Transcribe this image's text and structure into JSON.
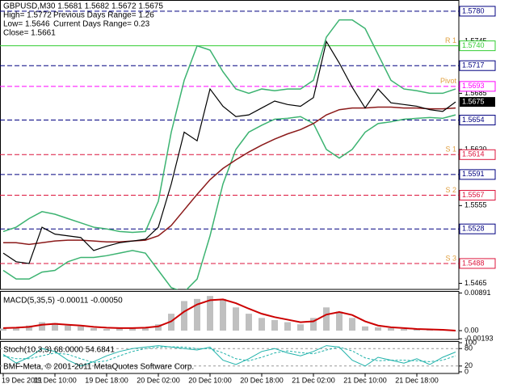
{
  "chart_data": [
    {
      "type": "line",
      "title": "GBPUSD,M30  1.5681 1.5682 1.5672 1.5675",
      "annotations": [
        "High= 1.5772",
        "Previous Days Range= 1.26",
        "Low= 1.5646",
        "Current Days Range= 0.23",
        "Close= 1.5661"
      ],
      "categories": [
        "19 Dec 2011",
        null,
        null,
        null,
        "19 Dec 10:00",
        null,
        null,
        null,
        "19 Dec 18:00",
        null,
        null,
        null,
        "20 Dec 02:00",
        null,
        null,
        null,
        "20 Dec 10:00",
        null,
        null,
        null,
        "20 Dec 18:00",
        null,
        null,
        null,
        "21 Dec 02:00",
        null,
        null,
        null,
        "21 Dec 10:00",
        null,
        null,
        null,
        "21 Dec 18:00",
        null,
        null,
        null
      ],
      "series": [
        {
          "color": "#3cb371",
          "values": [
            1.5525,
            1.553,
            1.554,
            1.5548,
            1.5545,
            1.554,
            1.5535,
            1.553,
            1.5528,
            1.5525,
            1.5524,
            1.5525,
            1.556,
            1.564,
            1.57,
            1.574,
            1.5735,
            1.571,
            1.569,
            1.5685,
            1.569,
            1.5688,
            1.569,
            1.569,
            1.57,
            1.575,
            1.577,
            1.577,
            1.576,
            1.573,
            1.57,
            1.569,
            1.5688,
            1.5685,
            1.5685,
            1.569
          ]
        },
        {
          "color": "#3cb371",
          "values": [
            1.548,
            1.547,
            1.547,
            1.5478,
            1.548,
            1.549,
            1.5495,
            1.5495,
            1.5497,
            1.55,
            1.5503,
            1.55,
            1.548,
            1.546,
            1.5455,
            1.547,
            1.552,
            1.558,
            1.562,
            1.564,
            1.5648,
            1.5655,
            1.5656,
            1.5658,
            1.565,
            1.562,
            1.561,
            1.562,
            1.564,
            1.565,
            1.5652,
            1.5655,
            1.5656,
            1.5657,
            1.5656,
            1.566
          ]
        },
        {
          "color": "#8b1a1a",
          "values": [
            1.5512,
            1.5512,
            1.551,
            1.5512,
            1.5514,
            1.5515,
            1.5515,
            1.5514,
            1.5513,
            1.5513,
            1.5514,
            1.5515,
            1.552,
            1.5532,
            1.555,
            1.5568,
            1.5585,
            1.5598,
            1.5608,
            1.5617,
            1.5625,
            1.5632,
            1.5638,
            1.5643,
            1.565,
            1.566,
            1.5666,
            1.5668,
            1.5668,
            1.5669,
            1.5669,
            1.5668,
            1.5668,
            1.5667,
            1.5667,
            1.5668
          ]
        },
        {
          "color": "#000000",
          "values": [
            1.55,
            1.549,
            1.5488,
            1.553,
            1.5522,
            1.552,
            1.5518,
            1.5503,
            1.5508,
            1.5512,
            1.5514,
            1.5516,
            1.553,
            1.558,
            1.564,
            1.563,
            1.569,
            1.567,
            1.5658,
            1.566,
            1.5668,
            1.5676,
            1.5672,
            1.567,
            1.568,
            1.5745,
            1.572,
            1.5692,
            1.5668,
            1.569,
            1.5674,
            1.5672,
            1.567,
            1.5666,
            1.5664,
            1.5675
          ]
        }
      ],
      "ylim": [
        1.5458,
        1.5793
      ],
      "yticks": [
        1.5745,
        1.5685,
        {
          "value": 1.562,
          "label": "1.5620"
        },
        1.5555,
        1.5465
      ],
      "levels": [
        {
          "value": 1.578,
          "label": "1.5780",
          "color": "#000080",
          "dash": true
        },
        {
          "value": 1.574,
          "label": "1.5740",
          "name": "R 1",
          "color": "#32cd32",
          "dash": false
        },
        {
          "value": 1.5717,
          "label": "1.5717",
          "color": "#000080",
          "dash": true
        },
        {
          "value": 1.5693,
          "label": "1.5693",
          "name": "Pivot",
          "color": "#ff00ff",
          "dash": true
        },
        {
          "value": 1.5654,
          "label": "1.5654",
          "color": "#000080",
          "dash": true
        },
        {
          "value": 1.5614,
          "label": "1.5614",
          "name": "S 1",
          "color": "#dc143c",
          "dash": true
        },
        {
          "value": 1.5591,
          "label": "1.5591",
          "color": "#000080",
          "dash": true
        },
        {
          "value": 1.5567,
          "label": "1.5567",
          "name": "S 2",
          "color": "#dc143c",
          "dash": true
        },
        {
          "value": 1.5528,
          "label": "1.5528",
          "color": "#000080",
          "dash": true
        },
        {
          "value": 1.5488,
          "label": "1.5488",
          "name": "S 3",
          "color": "#dc143c",
          "dash": true
        }
      ],
      "last": {
        "value": 1.5675,
        "label": "1.5675"
      }
    },
    {
      "type": "bar",
      "title": "MACD(5,35,5) -0.00011 -0.00050",
      "series": [
        {
          "type": "bar",
          "color": "#c0c0c0",
          "values": [
            0.0005,
            0.0008,
            0.0012,
            0.002,
            0.0018,
            0.0012,
            0.001,
            0.0006,
            0.0004,
            0.0006,
            0.0006,
            0.0008,
            0.0015,
            0.004,
            0.007,
            0.0075,
            0.0082,
            0.0075,
            0.0055,
            0.004,
            0.003,
            0.0025,
            0.002,
            0.0015,
            0.003,
            0.0055,
            0.0045,
            0.003,
            0.001,
            0.0008,
            0.0006,
            0.0004,
            0.0003,
            0.0002,
            0.0001,
            -0.0001
          ]
        },
        {
          "type": "line",
          "color": "#cc0000",
          "values": [
            0.0006,
            0.0007,
            0.0009,
            0.0014,
            0.0016,
            0.0014,
            0.0012,
            0.0009,
            0.0007,
            0.0006,
            0.0006,
            0.0007,
            0.001,
            0.0022,
            0.0045,
            0.0062,
            0.0072,
            0.0074,
            0.0065,
            0.0052,
            0.004,
            0.0032,
            0.0026,
            0.002,
            0.0022,
            0.0038,
            0.0044,
            0.0037,
            0.0022,
            0.0012,
            0.0008,
            0.0006,
            0.0004,
            0.0003,
            0.0002,
            0.0
          ]
        }
      ],
      "ylim": [
        -0.0021,
        0.009
      ],
      "yticks": [
        0.00891,
        {
          "value": 0,
          "label": "0.00"
        },
        -0.00193
      ]
    },
    {
      "type": "line",
      "title": "Stoch(10,3,3) 68.0000 54.6841",
      "annotations": [
        "BMF-Meta, © 2001-2011 MetaQuotes Software Corp."
      ],
      "series": [
        {
          "type": "line",
          "color": "#20b2aa",
          "dash": false,
          "values": [
            60,
            30,
            50,
            80,
            70,
            40,
            20,
            35,
            55,
            70,
            80,
            85,
            90,
            85,
            80,
            75,
            85,
            40,
            25,
            45,
            70,
            80,
            65,
            55,
            70,
            90,
            85,
            40,
            20,
            50,
            40,
            30,
            45,
            25,
            50,
            68
          ]
        },
        {
          "type": "line",
          "color": "#20b2aa",
          "dash": true,
          "values": [
            55,
            45,
            45,
            55,
            65,
            60,
            45,
            32,
            38,
            55,
            70,
            80,
            85,
            86,
            85,
            80,
            80,
            65,
            45,
            38,
            50,
            65,
            72,
            66,
            62,
            75,
            85,
            72,
            48,
            38,
            40,
            40,
            38,
            35,
            40,
            55
          ]
        }
      ],
      "ylim": [
        0,
        100
      ],
      "yticks": [
        100,
        80,
        20,
        0
      ]
    }
  ]
}
